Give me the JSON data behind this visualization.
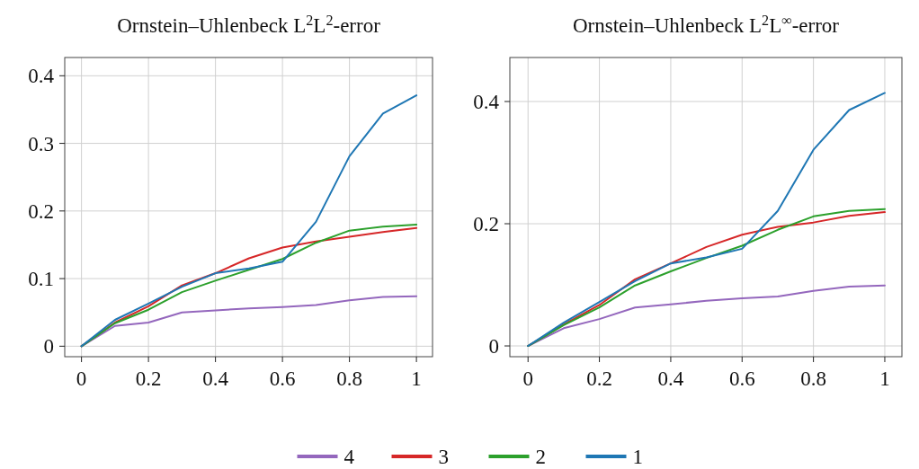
{
  "chart_data": [
    {
      "type": "line",
      "title": "Ornstein–Uhlenbeck L$^{2}$L$^{2}$-error",
      "x": [
        0,
        0.1,
        0.2,
        0.3,
        0.4,
        0.5,
        0.6,
        0.7,
        0.8,
        0.9,
        1
      ],
      "xlim": [
        -0.05,
        1.048
      ],
      "xticks": [
        0,
        0.2,
        0.4,
        0.6,
        0.8,
        1
      ],
      "ylim": [
        -0.0155,
        0.427
      ],
      "yticks": [
        0,
        0.1,
        0.2,
        0.3,
        0.4
      ],
      "grid": true,
      "legend": "bottom",
      "line_style": "solid",
      "series": [
        {
          "name": "4",
          "color": "#9467bd",
          "values": [
            0,
            0.03,
            0.035,
            0.05,
            0.053,
            0.056,
            0.058,
            0.061,
            0.068,
            0.073,
            0.074
          ]
        },
        {
          "name": "3",
          "color": "#d62728",
          "values": [
            0,
            0.035,
            0.059,
            0.09,
            0.108,
            0.13,
            0.146,
            0.155,
            0.162,
            0.169,
            0.175
          ]
        },
        {
          "name": "2",
          "color": "#2ca02c",
          "values": [
            0,
            0.034,
            0.054,
            0.08,
            0.097,
            0.113,
            0.129,
            0.153,
            0.171,
            0.177,
            0.18
          ]
        },
        {
          "name": "1",
          "color": "#1f77b4",
          "values": [
            0,
            0.039,
            0.063,
            0.088,
            0.108,
            0.115,
            0.125,
            0.184,
            0.281,
            0.344,
            0.371
          ]
        }
      ]
    },
    {
      "type": "line",
      "title": "Ornstein–Uhlenbeck L$^{2}$L$^{∞}$-error",
      "x": [
        0,
        0.1,
        0.2,
        0.3,
        0.4,
        0.5,
        0.6,
        0.7,
        0.8,
        0.9,
        1
      ],
      "xlim": [
        -0.051,
        1.048
      ],
      "xticks": [
        0,
        0.2,
        0.4,
        0.6,
        0.8,
        1
      ],
      "ylim": [
        -0.0176,
        0.472
      ],
      "yticks": [
        0,
        0.2,
        0.4
      ],
      "grid": true,
      "line_style": "solid",
      "series": [
        {
          "color": "#9467bd",
          "values": [
            0,
            0.029,
            0.044,
            0.063,
            0.068,
            0.074,
            0.078,
            0.081,
            0.09,
            0.097,
            0.099
          ]
        },
        {
          "color": "#d62728",
          "values": [
            0,
            0.035,
            0.067,
            0.109,
            0.135,
            0.162,
            0.182,
            0.195,
            0.202,
            0.213,
            0.219
          ]
        },
        {
          "color": "#2ca02c",
          "values": [
            0,
            0.034,
            0.063,
            0.099,
            0.122,
            0.144,
            0.164,
            0.19,
            0.212,
            0.221,
            0.224
          ]
        },
        {
          "color": "#1f77b4",
          "values": [
            0,
            0.038,
            0.072,
            0.106,
            0.135,
            0.145,
            0.159,
            0.221,
            0.321,
            0.386,
            0.414
          ]
        }
      ]
    }
  ]
}
